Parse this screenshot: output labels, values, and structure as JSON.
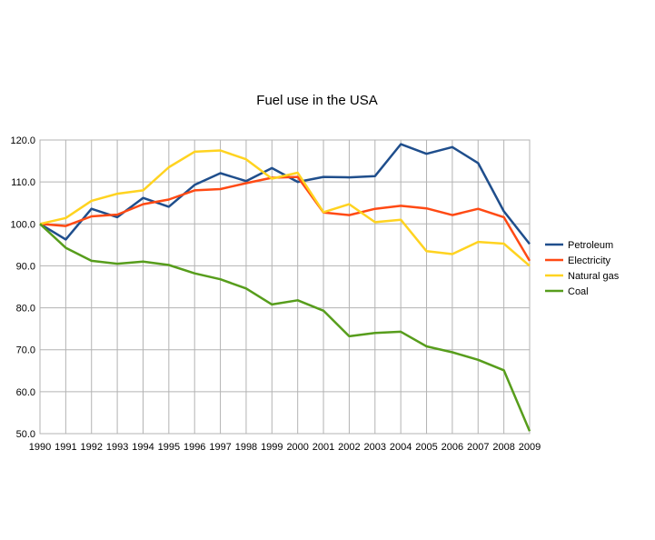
{
  "chart_data": {
    "type": "line",
    "title": "Fuel use in the USA",
    "xlabel": "",
    "ylabel": "",
    "x": [
      1990,
      1991,
      1992,
      1993,
      1994,
      1995,
      1996,
      1997,
      1998,
      1999,
      2000,
      2001,
      2002,
      2003,
      2004,
      2005,
      2006,
      2007,
      2008,
      2009
    ],
    "x_tick_labels": [
      "1990",
      "1991",
      "1992",
      "1993",
      "1994",
      "1995",
      "1996",
      "1997",
      "1998",
      "1999",
      "2000",
      "2001",
      "2002",
      "2003",
      "2004",
      "2005",
      "2006",
      "2007",
      "2008",
      "2009"
    ],
    "ylim": [
      50,
      120
    ],
    "y_ticks": [
      50,
      60,
      70,
      80,
      90,
      100,
      110,
      120
    ],
    "y_tick_labels": [
      "50.0",
      "60.0",
      "70.0",
      "80.0",
      "90.0",
      "100.0",
      "110.0",
      "120.0"
    ],
    "grid": true,
    "legend_position": "right",
    "series": [
      {
        "name": "Petroleum",
        "color": "#1f4e8c",
        "values": [
          100.0,
          96.3,
          103.6,
          101.6,
          106.2,
          104.1,
          109.3,
          112.1,
          110.2,
          113.3,
          110.0,
          111.2,
          111.1,
          111.4,
          119.0,
          116.7,
          118.3,
          114.5,
          103.0,
          95.2
        ]
      },
      {
        "name": "Electricity",
        "color": "#ff4a14",
        "values": [
          100.0,
          99.5,
          101.8,
          102.2,
          104.7,
          105.8,
          108.0,
          108.3,
          109.7,
          111.0,
          111.2,
          102.7,
          102.1,
          103.6,
          104.3,
          103.7,
          102.1,
          103.6,
          101.6,
          91.2
        ]
      },
      {
        "name": "Natural gas",
        "color": "#ffd320",
        "values": [
          100.0,
          101.4,
          105.5,
          107.2,
          108.0,
          113.5,
          117.2,
          117.5,
          115.4,
          110.8,
          112.2,
          102.8,
          104.7,
          100.4,
          101.0,
          93.5,
          92.8,
          95.7,
          95.3,
          90.0
        ]
      },
      {
        "name": "Coal",
        "color": "#579d1c",
        "values": [
          100.0,
          94.3,
          91.2,
          90.5,
          91.0,
          90.2,
          88.2,
          86.8,
          84.6,
          80.8,
          81.8,
          79.3,
          73.2,
          74.0,
          74.3,
          70.8,
          69.4,
          67.6,
          65.1,
          50.6
        ]
      }
    ]
  }
}
